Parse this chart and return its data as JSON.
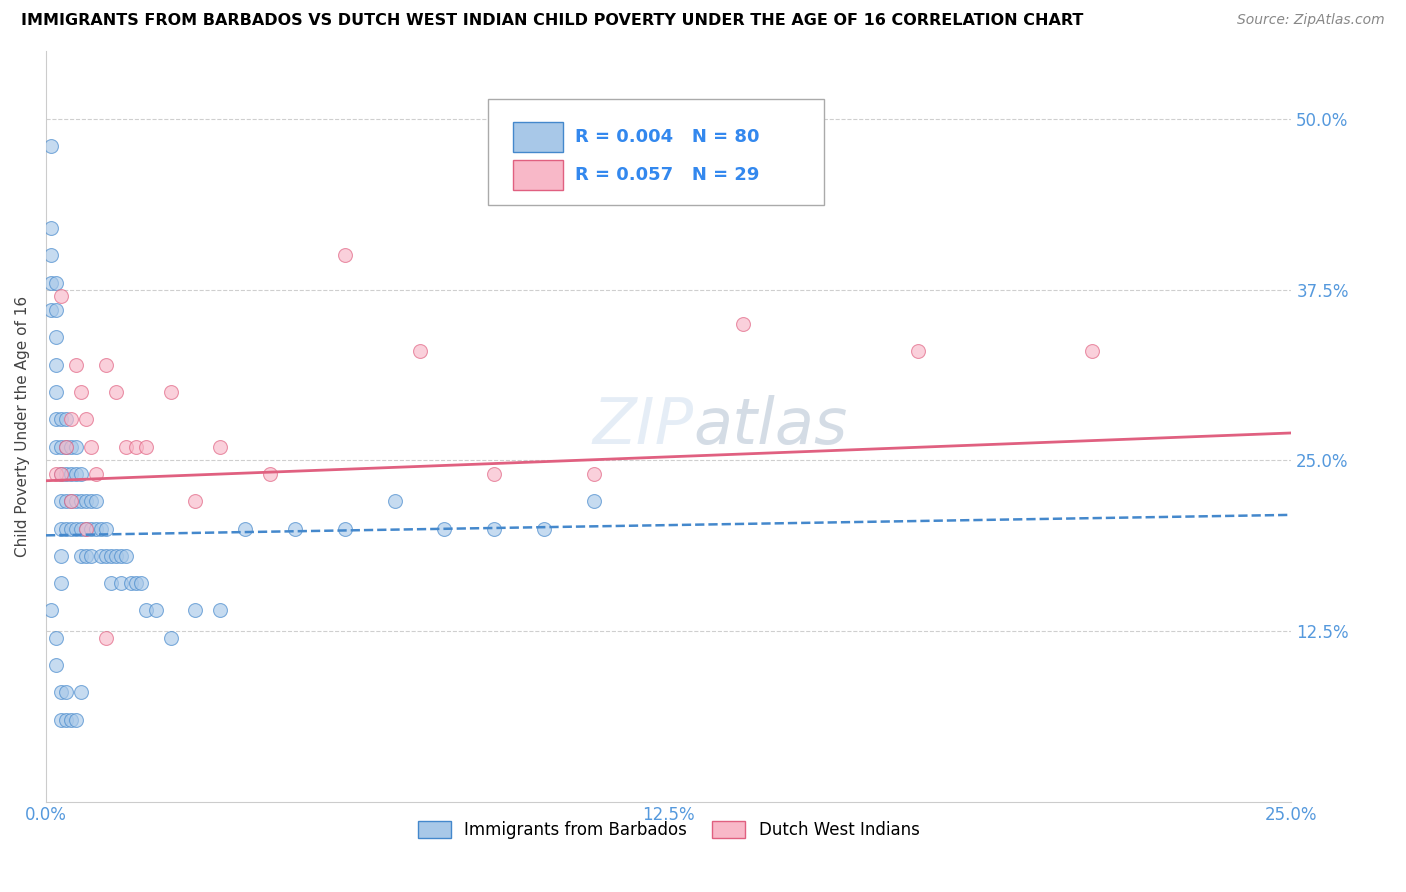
{
  "title": "IMMIGRANTS FROM BARBADOS VS DUTCH WEST INDIAN CHILD POVERTY UNDER THE AGE OF 16 CORRELATION CHART",
  "source": "Source: ZipAtlas.com",
  "ylabel": "Child Poverty Under the Age of 16",
  "xlim": [
    0.0,
    0.25
  ],
  "ylim": [
    0.0,
    0.55
  ],
  "xtick_positions": [
    0.0,
    0.125,
    0.25
  ],
  "ytick_positions": [
    0.125,
    0.25,
    0.375,
    0.5
  ],
  "legend_R1": "0.004",
  "legend_N1": "80",
  "legend_R2": "0.057",
  "legend_N2": "29",
  "series1_label": "Immigrants from Barbados",
  "series2_label": "Dutch West Indians",
  "color1": "#a8c8e8",
  "color2": "#f8b8c8",
  "line1_color": "#4488cc",
  "line2_color": "#e06080",
  "background_color": "#ffffff",
  "grid_color": "#bbbbbb",
  "watermark": "ZIPAtlas",
  "blue_scatter_x": [
    0.001,
    0.001,
    0.001,
    0.001,
    0.001,
    0.002,
    0.002,
    0.002,
    0.002,
    0.002,
    0.002,
    0.002,
    0.003,
    0.003,
    0.003,
    0.003,
    0.003,
    0.003,
    0.003,
    0.004,
    0.004,
    0.004,
    0.004,
    0.004,
    0.005,
    0.005,
    0.005,
    0.005,
    0.006,
    0.006,
    0.006,
    0.006,
    0.007,
    0.007,
    0.007,
    0.007,
    0.008,
    0.008,
    0.008,
    0.009,
    0.009,
    0.009,
    0.01,
    0.01,
    0.011,
    0.011,
    0.012,
    0.012,
    0.013,
    0.013,
    0.014,
    0.015,
    0.015,
    0.016,
    0.017,
    0.018,
    0.019,
    0.02,
    0.022,
    0.025,
    0.03,
    0.035,
    0.04,
    0.05,
    0.06,
    0.07,
    0.08,
    0.09,
    0.1,
    0.11,
    0.001,
    0.002,
    0.002,
    0.003,
    0.003,
    0.004,
    0.004,
    0.005,
    0.006,
    0.007
  ],
  "blue_scatter_y": [
    0.48,
    0.42,
    0.4,
    0.38,
    0.36,
    0.38,
    0.36,
    0.34,
    0.32,
    0.3,
    0.28,
    0.26,
    0.28,
    0.26,
    0.24,
    0.22,
    0.2,
    0.18,
    0.16,
    0.28,
    0.26,
    0.24,
    0.22,
    0.2,
    0.26,
    0.24,
    0.22,
    0.2,
    0.26,
    0.24,
    0.22,
    0.2,
    0.24,
    0.22,
    0.2,
    0.18,
    0.22,
    0.2,
    0.18,
    0.22,
    0.2,
    0.18,
    0.22,
    0.2,
    0.2,
    0.18,
    0.2,
    0.18,
    0.18,
    0.16,
    0.18,
    0.18,
    0.16,
    0.18,
    0.16,
    0.16,
    0.16,
    0.14,
    0.14,
    0.12,
    0.14,
    0.14,
    0.2,
    0.2,
    0.2,
    0.22,
    0.2,
    0.2,
    0.2,
    0.22,
    0.14,
    0.12,
    0.1,
    0.08,
    0.06,
    0.08,
    0.06,
    0.06,
    0.06,
    0.08
  ],
  "pink_scatter_x": [
    0.002,
    0.003,
    0.004,
    0.005,
    0.006,
    0.007,
    0.008,
    0.009,
    0.01,
    0.012,
    0.014,
    0.016,
    0.018,
    0.02,
    0.025,
    0.03,
    0.035,
    0.045,
    0.06,
    0.075,
    0.09,
    0.11,
    0.14,
    0.175,
    0.21,
    0.003,
    0.005,
    0.008,
    0.012
  ],
  "pink_scatter_y": [
    0.24,
    0.37,
    0.26,
    0.28,
    0.32,
    0.3,
    0.28,
    0.26,
    0.24,
    0.32,
    0.3,
    0.26,
    0.26,
    0.26,
    0.3,
    0.22,
    0.26,
    0.24,
    0.4,
    0.33,
    0.24,
    0.24,
    0.35,
    0.33,
    0.33,
    0.24,
    0.22,
    0.2,
    0.12
  ]
}
